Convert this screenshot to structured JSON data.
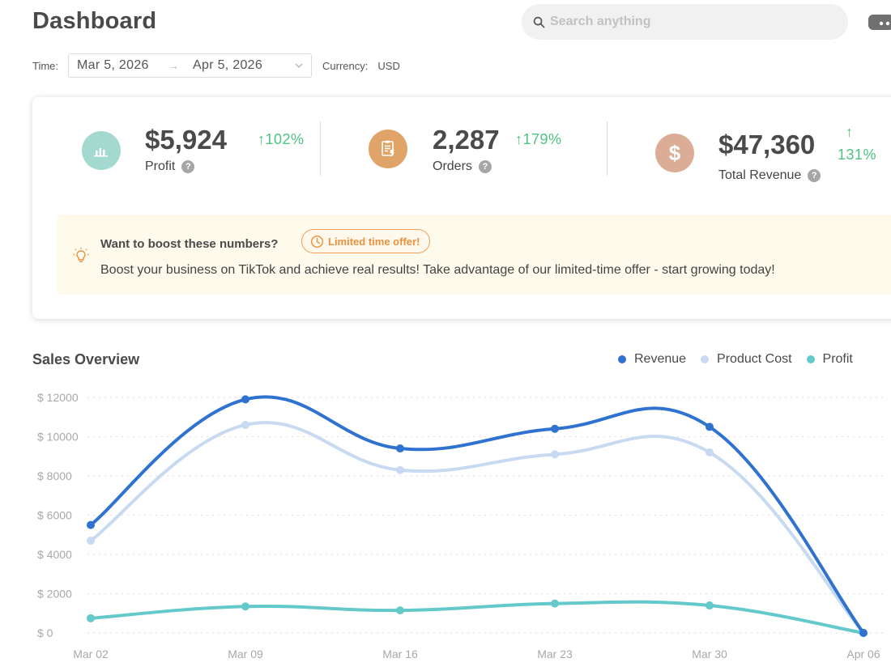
{
  "header": {
    "title": "Dashboard"
  },
  "search": {
    "placeholder": "Search anything"
  },
  "filters": {
    "time_label": "Time:",
    "date_start": "Mar 5, 2026",
    "date_separator": "→",
    "date_end": "Apr 5, 2026",
    "currency_label": "Currency:",
    "currency_value": "USD"
  },
  "stats": [
    {
      "value": "$5,924",
      "label": "Profit",
      "change": "↑102%",
      "icon": "bar-chart-icon",
      "color": "#a3d9cf"
    },
    {
      "value": "2,287",
      "label": "Orders",
      "change": "↑179%",
      "icon": "clipboard-icon",
      "color": "#e0a468"
    },
    {
      "value": "$47,360",
      "label": "Total Revenue",
      "change_arrow": "↑",
      "change": "131%",
      "icon": "dollar-icon",
      "color": "#dcad96"
    }
  ],
  "help_glyph": "?",
  "dollar_glyph": "$",
  "promo": {
    "title": "Want to boost these numbers?",
    "badge": "Limited time offer!",
    "text": "Boost your business on TikTok and achieve real results! Take advantage of our limited-time offer - start growing today!"
  },
  "chart_title": "Sales Overview",
  "colors": {
    "revenue": "#2f72cf",
    "product_cost": "#c7daf1",
    "profit": "#63c9cb",
    "positive": "#4fc381"
  },
  "chart_data": {
    "type": "line",
    "categories": [
      "Mar 02",
      "Mar 09",
      "Mar 16",
      "Mar 23",
      "Mar 30",
      "Apr 06"
    ],
    "ylim": [
      0,
      12000
    ],
    "yticks": [
      {
        "value": 0,
        "label": "$ 0"
      },
      {
        "value": 2000,
        "label": "$ 2000"
      },
      {
        "value": 4000,
        "label": "$ 4000"
      },
      {
        "value": 6000,
        "label": "$ 6000"
      },
      {
        "value": 8000,
        "label": "$ 8000"
      },
      {
        "value": 10000,
        "label": "$ 10000"
      },
      {
        "value": 12000,
        "label": "$ 12000"
      }
    ],
    "grid": true,
    "legend": "top-right",
    "series": [
      {
        "name": "Revenue",
        "color": "#2f72cf",
        "values": [
          5500,
          11900,
          9400,
          10400,
          10500,
          0
        ]
      },
      {
        "name": "Product Cost",
        "color": "#c7daf1",
        "values": [
          4700,
          10600,
          8300,
          9100,
          9200,
          0
        ]
      },
      {
        "name": "Profit",
        "color": "#63c9cb",
        "values": [
          750,
          1350,
          1150,
          1500,
          1400,
          0
        ]
      }
    ]
  }
}
